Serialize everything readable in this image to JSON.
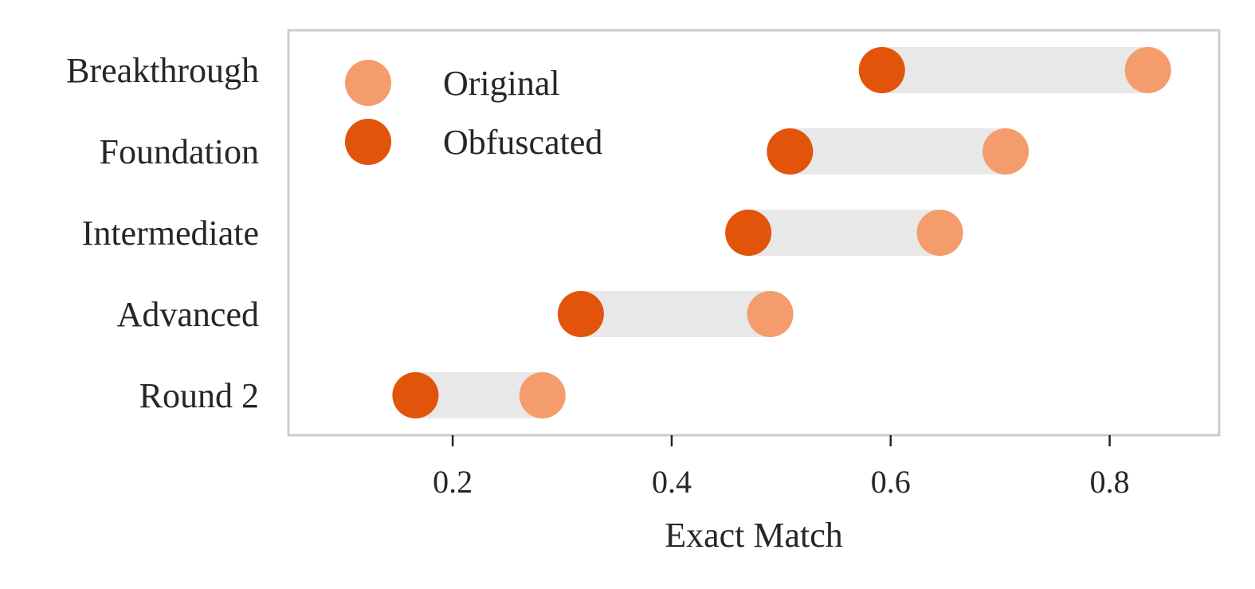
{
  "chart_data": {
    "type": "dumbbell",
    "categories": [
      "Breakthrough",
      "Foundation",
      "Intermediate",
      "Advanced",
      "Round 2"
    ],
    "series": [
      {
        "name": "Original",
        "values": [
          0.835,
          0.705,
          0.645,
          0.49,
          0.282
        ],
        "color": "#f49c6c"
      },
      {
        "name": "Obfuscated",
        "values": [
          0.592,
          0.508,
          0.47,
          0.317,
          0.166
        ],
        "color": "#e1540a"
      }
    ],
    "xlabel": "Exact Match",
    "ylabel": "",
    "xlim": [
      0.05,
      0.9
    ],
    "xticks": [
      0.2,
      0.4,
      0.6,
      0.8
    ],
    "xtick_labels": [
      "0.2",
      "0.4",
      "0.6",
      "0.8"
    ],
    "legend_position": "top-left",
    "grid": false,
    "connector_color": "#e8e8e8",
    "frame_color": "#cccccc"
  }
}
